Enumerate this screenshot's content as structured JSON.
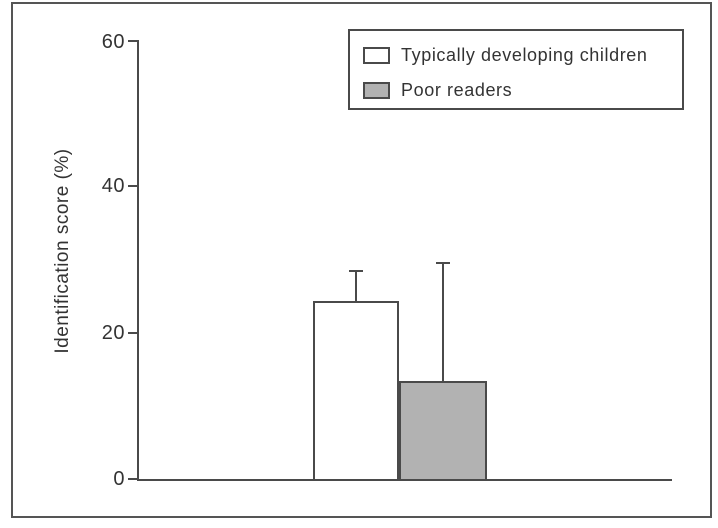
{
  "figure": {
    "background": "#ffffff",
    "frame_border_color": "#555555",
    "line_color": "#4a4a4a",
    "text_color": "#333333"
  },
  "chart_data": {
    "type": "bar",
    "title": "",
    "xlabel": "",
    "ylabel": "Identification score (%)",
    "ylim": [
      0,
      60
    ],
    "yticks": [
      "0",
      "20",
      "40",
      "60"
    ],
    "grid": false,
    "legend_position": "upper right",
    "categories": [
      "Typically developing children",
      "Poor readers"
    ],
    "values": [
      24.3,
      13.4
    ],
    "errors_up": [
      4.3,
      16.3
    ],
    "bar_fills": [
      "#ffffff",
      "#b2b2b2"
    ]
  },
  "legend": {
    "items": [
      {
        "label": "Typically developing children",
        "swatch_color": "#ffffff"
      },
      {
        "label": "Poor readers",
        "swatch_color": "#b2b2b2"
      }
    ]
  }
}
